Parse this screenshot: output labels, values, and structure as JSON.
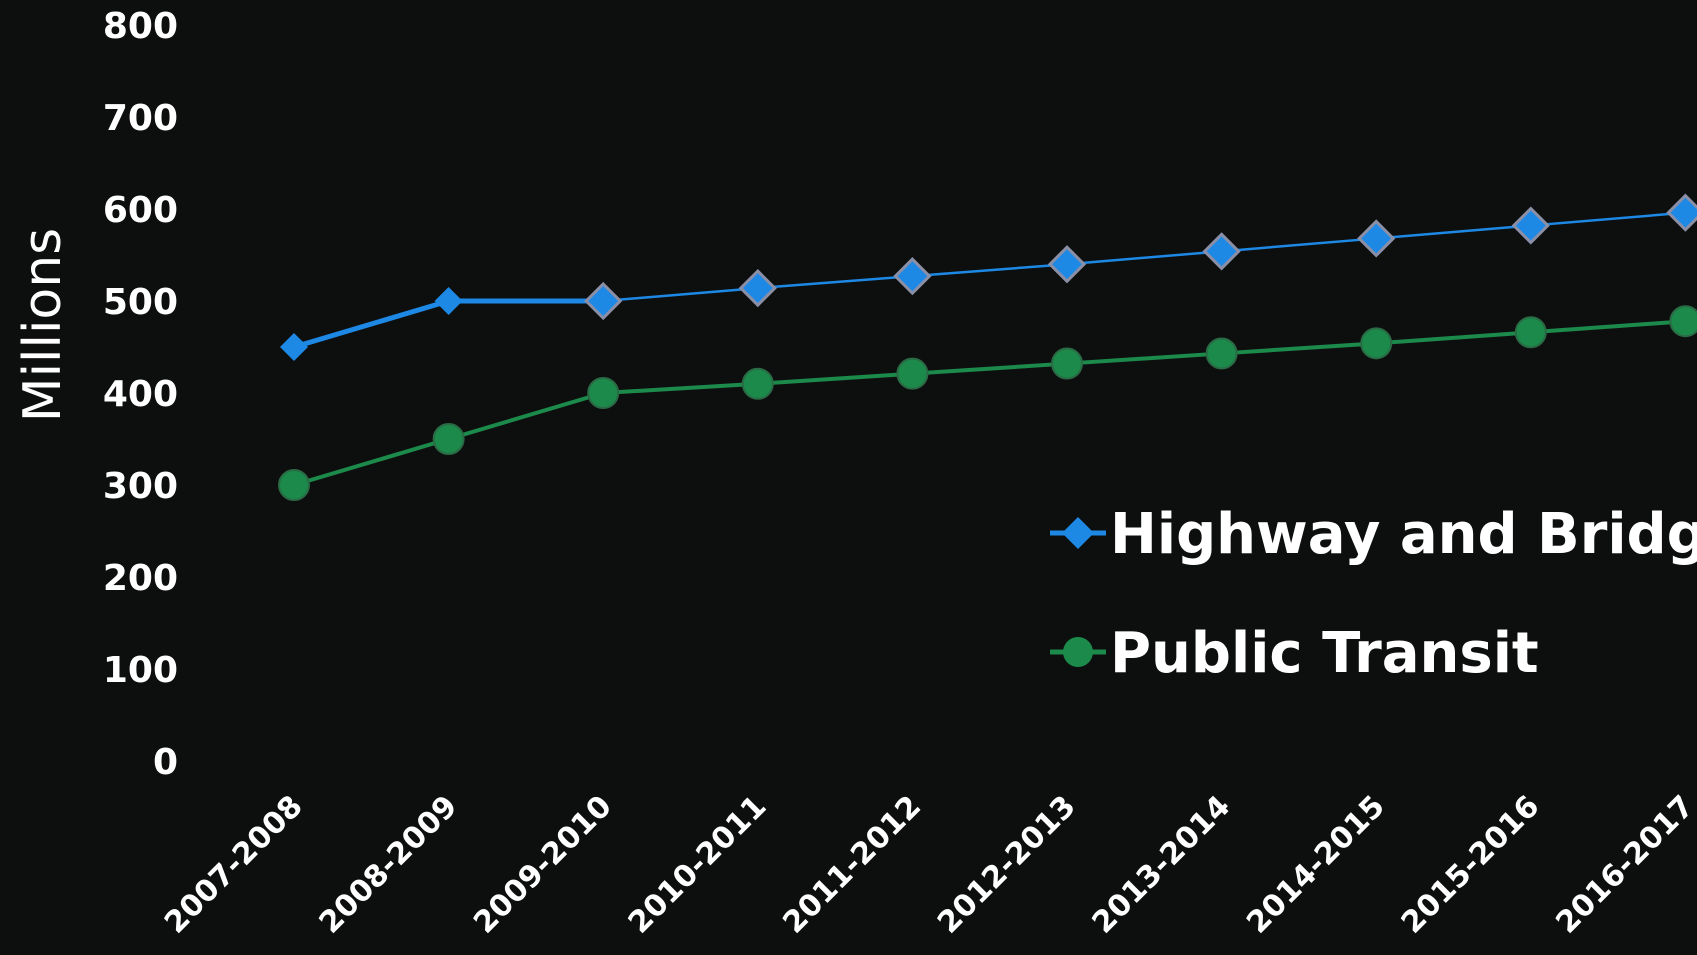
{
  "chart_data": {
    "type": "line",
    "title": "",
    "xlabel": "",
    "ylabel": "Millions",
    "ylim": [
      0,
      800
    ],
    "yticks": [
      "0",
      "100",
      "200",
      "300",
      "400",
      "500",
      "600",
      "700",
      "800"
    ],
    "grid": false,
    "legend_position": "right",
    "categories": [
      "2007-2008",
      "2008-2009",
      "2009-2010",
      "2010-2011",
      "2011-2012",
      "2012-2013",
      "2013-2014",
      "2014-2015",
      "2015-2016",
      "2016-2017"
    ],
    "series": [
      {
        "name": "Highway and Bridge",
        "marker": "diamond",
        "color": "#1e88e5",
        "values": [
          450,
          500,
          500,
          514,
          527,
          540,
          554,
          568,
          582,
          596
        ]
      },
      {
        "name": "Public Transit",
        "marker": "circle",
        "color": "#1b8a4a",
        "values": [
          300,
          350,
          400,
          410,
          421,
          432,
          443,
          454,
          466,
          478
        ]
      }
    ]
  }
}
